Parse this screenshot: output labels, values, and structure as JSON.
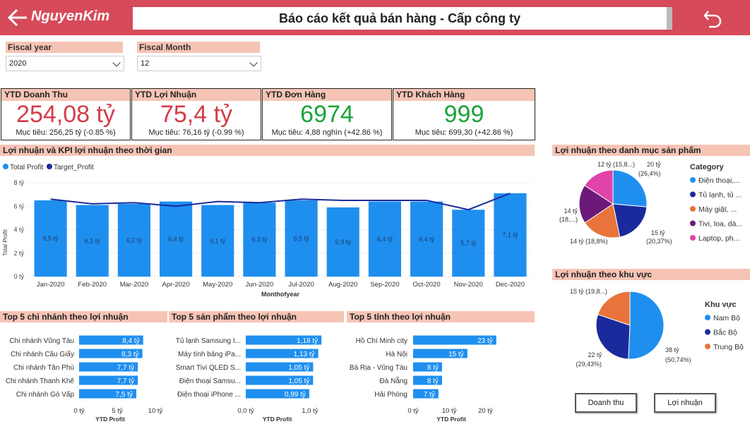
{
  "header": {
    "logo": "NguyenKim",
    "title": "Báo cáo kết quả bán hàng - Cấp công ty"
  },
  "filters": [
    {
      "label": "Fiscal year",
      "value": "2020"
    },
    {
      "label": "Fiscal Month",
      "value": "12"
    }
  ],
  "kpis": [
    {
      "title": "YTD Doanh Thu",
      "value": "254,08 tỷ",
      "sub": "Mục tiêu: 256,25 tỷ (-0.85 %)",
      "color": "#d33d4a"
    },
    {
      "title": "YTD Lợi Nhuận",
      "value": "75,4 tỷ",
      "sub": "Mục tiêu: 76,16 tỷ (-0.99 %)",
      "color": "#d33d4a"
    },
    {
      "title": "YTD Đơn Hàng",
      "value": "6974",
      "sub": "Mục tiêu: 4,88 nghìn (+42.86 %)",
      "color": "#1aa33a"
    },
    {
      "title": "YTD Khách Hàng",
      "value": "999",
      "sub": "Mục tiêu: 699,30 (+42.86 %)",
      "color": "#1aa33a"
    }
  ],
  "sections": {
    "profit_time": "Lợi nhuận và KPI lợi nhuận theo thời gian",
    "profit_category": "Lợi nhuận theo danh mục sản phẩm",
    "profit_region": "Lợi nhuận theo khu vực",
    "top_branch": "Top 5 chi nhánh theo lợi nhuận",
    "top_product": "Top 5 sản phẩm theo lợi nhuận",
    "top_province": "Top 5 tỉnh theo lợi nhuận"
  },
  "buttons": {
    "revenue": "Doanh thu",
    "profit": "Lợi nhuận"
  },
  "chart_data": [
    {
      "type": "bar",
      "title": "Lợi nhuận và KPI lợi nhuận theo thời gian",
      "legend": [
        "Total Profit",
        "Target_Profit"
      ],
      "categories": [
        "Jan-2020",
        "Feb-2020",
        "Mar-2020",
        "Apr-2020",
        "May-2020",
        "Jun-2020",
        "Jul-2020",
        "Aug-2020",
        "Sep-2020",
        "Oct-2020",
        "Nov-2020",
        "Dec-2020"
      ],
      "series": [
        {
          "name": "Total Profit",
          "kind": "bar",
          "values": [
            6.5,
            6.1,
            6.2,
            6.4,
            6.1,
            6.3,
            6.5,
            5.9,
            6.4,
            6.4,
            5.7,
            7.1
          ],
          "labels": [
            "6,5 tỷ",
            "6,1 tỷ",
            "6,2 tỷ",
            "6,4 tỷ",
            "6,1 tỷ",
            "6,3 tỷ",
            "6,5 tỷ",
            "5,9 tỷ",
            "6,4 tỷ",
            "6,4 tỷ",
            "5,7 tỷ",
            "7,1 tỷ"
          ]
        },
        {
          "name": "Target_Profit",
          "kind": "line",
          "values": [
            6.6,
            6.2,
            6.3,
            6.0,
            6.4,
            6.3,
            6.6,
            6.5,
            6.5,
            6.5,
            5.7,
            7.1
          ]
        }
      ],
      "yticks": [
        "0 tỷ",
        "2 tỷ",
        "4 tỷ",
        "6 tỷ",
        "8 tỷ"
      ],
      "ylim": [
        0,
        8
      ],
      "xlabel": "Monthofyear",
      "ylabel": "Total Profit",
      "colors": {
        "bar": "#1f8fef",
        "line": "#1a2a9c"
      }
    },
    {
      "type": "pie",
      "title": "Lợi nhuận theo danh mục sản phẩm",
      "legend_title": "Category",
      "slices": [
        {
          "name": "Điện thoại,...",
          "value": 26.4,
          "label1": "20 tỷ",
          "label2": "(26,4%)",
          "color": "#1f8fef"
        },
        {
          "name": "Tủ lạnh, tủ ...",
          "value": 20.37,
          "label1": "15 tỷ",
          "label2": "(20,37%)",
          "color": "#1a2a9c"
        },
        {
          "name": "Máy giặt, ...",
          "value": 18.8,
          "label1": "14 tỷ (18,8%)",
          "label2": "",
          "color": "#e8743b"
        },
        {
          "name": "Tivi, loa, dà...",
          "value": 18.6,
          "label1": "14 tỷ",
          "label2": "(18,...)",
          "color": "#6b1a7a"
        },
        {
          "name": "Laptop, ph...",
          "value": 15.8,
          "label1": "12 tỷ (15,8...)",
          "label2": "",
          "color": "#e044a8"
        }
      ]
    },
    {
      "type": "pie",
      "title": "Lợi nhuận theo khu vực",
      "legend_title": "Khu vực",
      "slices": [
        {
          "name": "Nam Bộ",
          "value": 50.74,
          "label1": "38 tỷ",
          "label2": "(50,74%)",
          "color": "#1f8fef"
        },
        {
          "name": "Bắc Bộ",
          "value": 29.43,
          "label1": "22 tỷ",
          "label2": "(29,43%)",
          "color": "#1a2a9c"
        },
        {
          "name": "Trung Bộ",
          "value": 19.83,
          "label1": "15 tỷ (19,8...)",
          "label2": "",
          "color": "#e8743b"
        }
      ]
    },
    {
      "type": "bar",
      "orientation": "horizontal",
      "title": "Top 5 chi nhánh theo lợi nhuận",
      "categories": [
        "Chi nhánh Vũng Tàu",
        "Chi nhánh Cầu Giấy",
        "Chi nhánh Tân Phú",
        "Chi nhánh Thanh Khê",
        "Chi nhánh Gò Vấp"
      ],
      "values": [
        8.4,
        8.3,
        7.7,
        7.7,
        7.5
      ],
      "labels": [
        "8,4 tỷ",
        "8,3 tỷ",
        "7,7 tỷ",
        "7,7 tỷ",
        "7,5 tỷ"
      ],
      "xticks": [
        "0 tỷ",
        "5 tỷ",
        "10 tỷ"
      ],
      "xlim": [
        0,
        10
      ],
      "xlabel": "YTD Profit"
    },
    {
      "type": "bar",
      "orientation": "horizontal",
      "title": "Top 5 sản phẩm theo lợi nhuận",
      "categories": [
        "Tủ lạnh Samsung I...",
        "Máy tính bảng iPa...",
        "Smart Tivi QLED S...",
        "Điện thoại Samsu...",
        "Điện thoại iPhone ..."
      ],
      "values": [
        1.18,
        1.13,
        1.05,
        1.05,
        0.99
      ],
      "labels": [
        "1,18 tỷ",
        "1,13 tỷ",
        "1,05 tỷ",
        "1,05 tỷ",
        "0,99 tỷ"
      ],
      "xticks": [
        "0,0 tỷ",
        "1,0 tỷ"
      ],
      "xlim": [
        0,
        1.2
      ],
      "xlabel": "YTD Profit"
    },
    {
      "type": "bar",
      "orientation": "horizontal",
      "title": "Top 5 tỉnh theo lợi nhuận",
      "categories": [
        "Hồ Chí Minh city",
        "Hà Nội",
        "Bà Rịa - Vũng Tàu",
        "Đà Nẵng",
        "Hải Phòng"
      ],
      "values": [
        23,
        15,
        8,
        8,
        7
      ],
      "labels": [
        "23 tỷ",
        "15 tỷ",
        "8 tỷ",
        "8 tỷ",
        "7 tỷ"
      ],
      "xticks": [
        "0 tỷ",
        "10 tỷ",
        "20 tỷ"
      ],
      "xlim": [
        0,
        25
      ],
      "xlabel": "YTD Profit"
    }
  ]
}
